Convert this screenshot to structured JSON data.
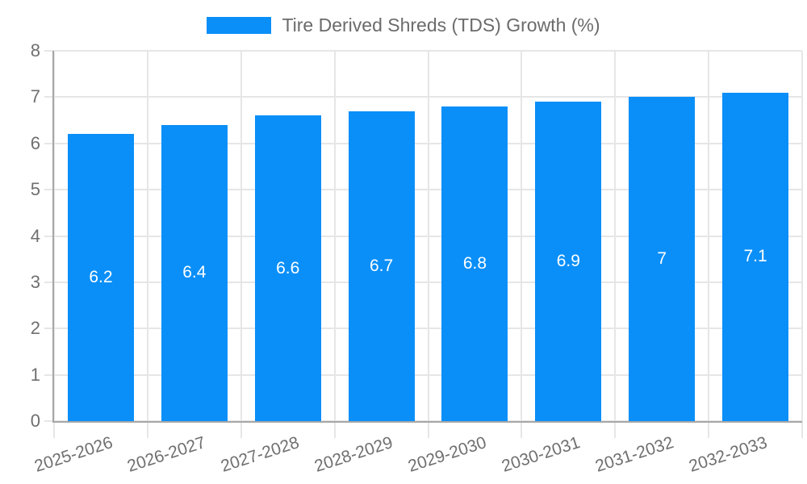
{
  "legend": {
    "label": "Tire Derived Shreds (TDS) Growth (%)"
  },
  "chart_data": {
    "type": "bar",
    "title": "Tire Derived Shreds (TDS) Growth (%)",
    "categories": [
      "2025-2026",
      "2026-2027",
      "2027-2028",
      "2028-2029",
      "2029-2030",
      "2030-2031",
      "2031-2032",
      "2032-2033"
    ],
    "values": [
      6.2,
      6.4,
      6.6,
      6.7,
      6.8,
      6.9,
      7,
      7.1
    ],
    "value_labels": [
      "6.2",
      "6.4",
      "6.6",
      "6.7",
      "6.8",
      "6.9",
      "7",
      "7.1"
    ],
    "xlabel": "",
    "ylabel": "",
    "ylim": [
      0,
      8
    ],
    "ytick_step": 1,
    "ytick_labels": [
      "0",
      "1",
      "2",
      "3",
      "4",
      "5",
      "6",
      "7",
      "8"
    ],
    "grid": true,
    "legend_position": "top-center",
    "x_tick_rotation_deg": -18,
    "colors": {
      "bar": "#0a8ff8",
      "value_label": "#ffffff",
      "grid_line": "#e6e6e6",
      "axis_line": "#a6a6a6",
      "tick_text": "#6f6f6f",
      "legend_text": "#6b6b6b",
      "background": "#ffffff"
    }
  }
}
